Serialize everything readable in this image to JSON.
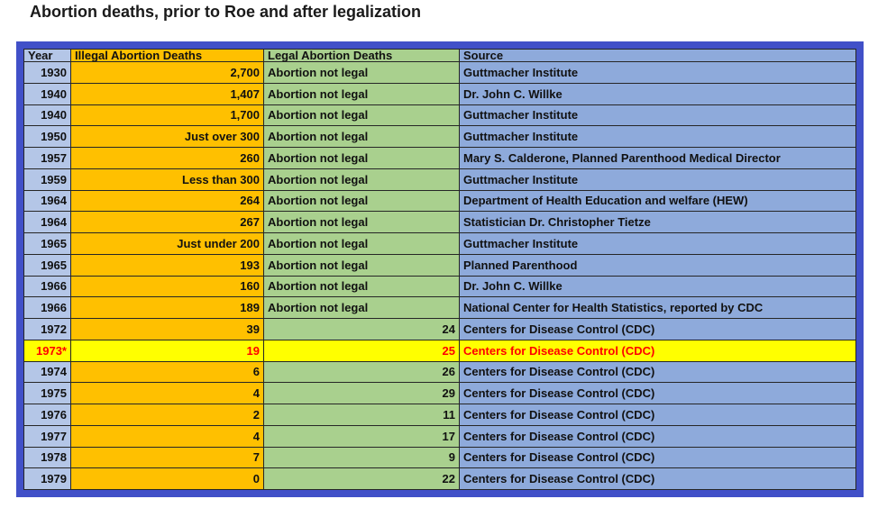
{
  "page_title": "Abortion deaths, prior to Roe and after legalization",
  "colors": {
    "outer_border": "#4150c8",
    "year_cell": "#b4c6e7",
    "illegal_cell": "#ffc000",
    "legal_cell": "#a9d08e",
    "source_cell": "#8eaadb",
    "highlight_bg": "#ffff00",
    "highlight_text": "#ff0000",
    "grid_line": "#262626"
  },
  "table": {
    "headers": [
      "Year",
      "Illegal Abortion Deaths",
      "Legal Abortion Deaths",
      "Source"
    ],
    "column_keys": [
      "year",
      "illegal",
      "legal",
      "source"
    ],
    "rows": [
      {
        "year": "1930",
        "illegal": "2,700",
        "legal": "Abortion not legal",
        "source": "Guttmacher Institute",
        "highlight": false
      },
      {
        "year": "1940",
        "illegal": "1,407",
        "legal": "Abortion not legal",
        "source": "Dr. John C. Willke",
        "highlight": false
      },
      {
        "year": "1940",
        "illegal": "1,700",
        "legal": "Abortion not legal",
        "source": "Guttmacher Institute",
        "highlight": false
      },
      {
        "year": "1950",
        "illegal": "Just over 300",
        "legal": "Abortion not legal",
        "source": "Guttmacher Institute",
        "highlight": false
      },
      {
        "year": "1957",
        "illegal": "260",
        "legal": "Abortion not legal",
        "source": "Mary S. Calderone, Planned Parenthood Medical Director",
        "highlight": false
      },
      {
        "year": "1959",
        "illegal": "Less than 300",
        "legal": "Abortion not legal",
        "source": "Guttmacher Institute",
        "highlight": false
      },
      {
        "year": "1964",
        "illegal": "264",
        "legal": "Abortion not legal",
        "source": "Department of Health Education and welfare (HEW)",
        "highlight": false
      },
      {
        "year": "1964",
        "illegal": "267",
        "legal": "Abortion not legal",
        "source": "Statistician Dr. Christopher Tietze",
        "highlight": false
      },
      {
        "year": "1965",
        "illegal": "Just under 200",
        "legal": "Abortion not legal",
        "source": "Guttmacher Institute",
        "highlight": false
      },
      {
        "year": "1965",
        "illegal": "193",
        "legal": "Abortion not legal",
        "source": "Planned Parenthood",
        "highlight": false
      },
      {
        "year": "1966",
        "illegal": "160",
        "legal": "Abortion not legal",
        "source": "Dr. John C. Willke",
        "highlight": false
      },
      {
        "year": "1966",
        "illegal": "189",
        "legal": "Abortion not legal",
        "source": "National Center for Health Statistics, reported by CDC",
        "highlight": false
      },
      {
        "year": "1972",
        "illegal": "39",
        "legal": "24",
        "source": "Centers for Disease Control (CDC)",
        "highlight": false
      },
      {
        "year": "1973*",
        "illegal": "19",
        "legal": "25",
        "source": "Centers for Disease Control (CDC)",
        "highlight": true
      },
      {
        "year": "1974",
        "illegal": "6",
        "legal": "26",
        "source": "Centers for Disease Control (CDC)",
        "highlight": false
      },
      {
        "year": "1975",
        "illegal": "4",
        "legal": "29",
        "source": "Centers for Disease Control (CDC)",
        "highlight": false
      },
      {
        "year": "1976",
        "illegal": "2",
        "legal": "11",
        "source": "Centers for Disease Control (CDC)",
        "highlight": false
      },
      {
        "year": "1977",
        "illegal": "4",
        "legal": "17",
        "source": "Centers for Disease Control (CDC)",
        "highlight": false
      },
      {
        "year": "1978",
        "illegal": "7",
        "legal": "9",
        "source": "Centers for Disease Control (CDC)",
        "highlight": false
      },
      {
        "year": "1979",
        "illegal": "0",
        "legal": "22",
        "source": "Centers for Disease Control (CDC)",
        "highlight": false
      }
    ]
  },
  "chart_data": {
    "type": "table",
    "title": "Abortion deaths, prior to Roe and after legalization",
    "columns": [
      "Year",
      "Illegal Abortion Deaths",
      "Legal Abortion Deaths",
      "Source"
    ],
    "rows": [
      [
        "1930",
        "2,700",
        "Abortion not legal",
        "Guttmacher Institute"
      ],
      [
        "1940",
        "1,407",
        "Abortion not legal",
        "Dr. John C. Willke"
      ],
      [
        "1940",
        "1,700",
        "Abortion not legal",
        "Guttmacher Institute"
      ],
      [
        "1950",
        "Just over 300",
        "Abortion not legal",
        "Guttmacher Institute"
      ],
      [
        "1957",
        "260",
        "Abortion not legal",
        "Mary S. Calderone, Planned Parenthood Medical Director"
      ],
      [
        "1959",
        "Less than 300",
        "Abortion not legal",
        "Guttmacher Institute"
      ],
      [
        "1964",
        "264",
        "Abortion not legal",
        "Department of Health Education and welfare (HEW)"
      ],
      [
        "1964",
        "267",
        "Abortion not legal",
        "Statistician Dr. Christopher Tietze"
      ],
      [
        "1965",
        "Just under 200",
        "Abortion not legal",
        "Guttmacher Institute"
      ],
      [
        "1965",
        "193",
        "Abortion not legal",
        "Planned Parenthood"
      ],
      [
        "1966",
        "160",
        "Abortion not legal",
        "Dr. John C. Willke"
      ],
      [
        "1966",
        "189",
        "Abortion not legal",
        "National Center for Health Statistics, reported by CDC"
      ],
      [
        "1972",
        "39",
        "24",
        "Centers for Disease Control (CDC)"
      ],
      [
        "1973*",
        "19",
        "25",
        "Centers for Disease Control (CDC)"
      ],
      [
        "1974",
        "6",
        "26",
        "Centers for Disease Control (CDC)"
      ],
      [
        "1975",
        "4",
        "29",
        "Centers for Disease Control (CDC)"
      ],
      [
        "1976",
        "2",
        "11",
        "Centers for Disease Control (CDC)"
      ],
      [
        "1977",
        "4",
        "17",
        "Centers for Disease Control (CDC)"
      ],
      [
        "1978",
        "7",
        "9",
        "Centers for Disease Control (CDC)"
      ],
      [
        "1979",
        "0",
        "22",
        "Centers for Disease Control (CDC)"
      ]
    ],
    "highlighted_row": "1973*"
  }
}
